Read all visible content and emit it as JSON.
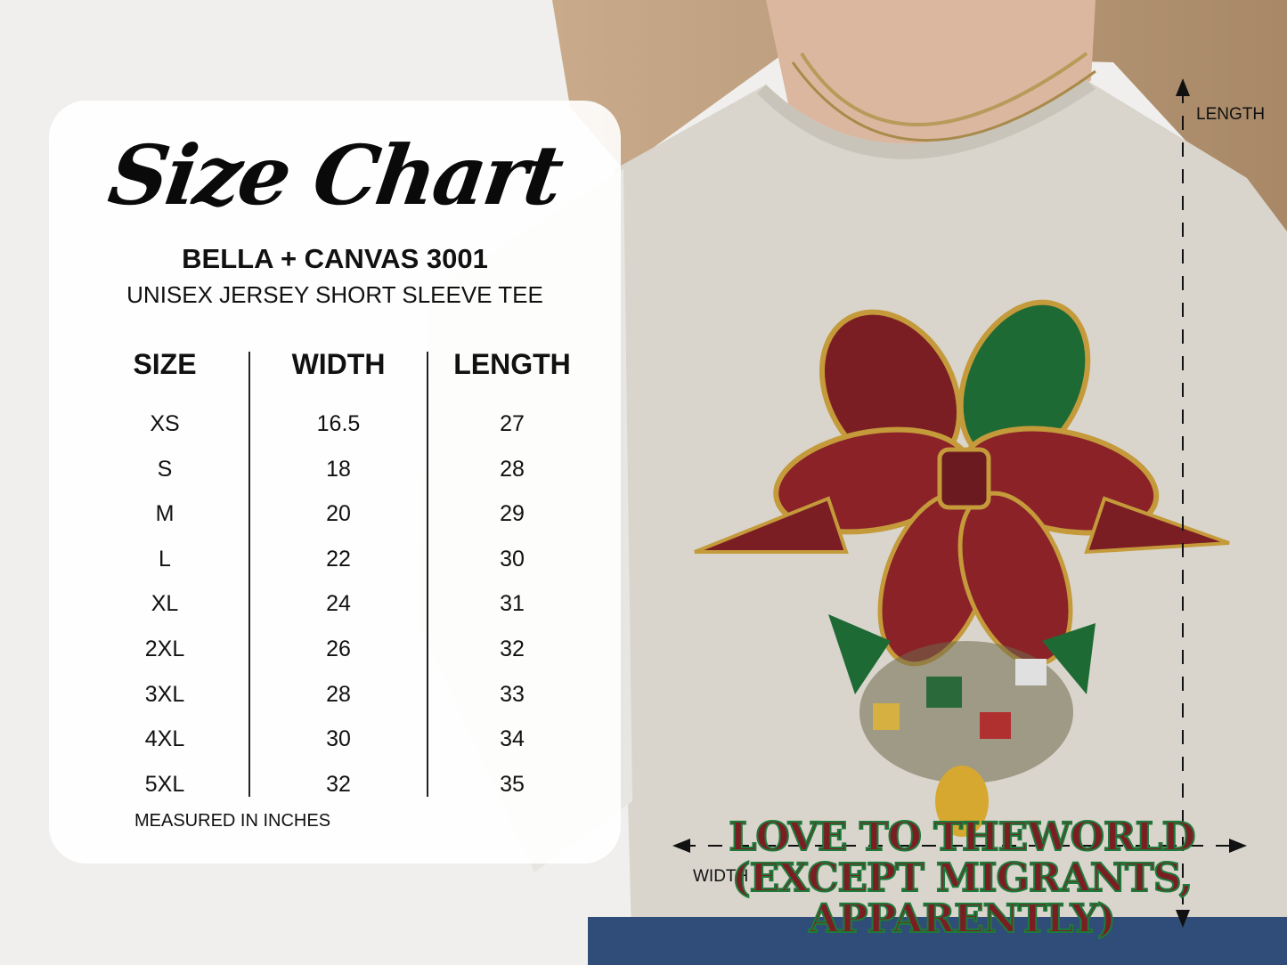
{
  "title": "Size Chart",
  "brand": "BELLA + CANVAS 3001",
  "model": "UNISEX JERSEY SHORT SLEEVE TEE",
  "table": {
    "headers": [
      "SIZE",
      "WIDTH",
      "LENGTH"
    ],
    "sizes": [
      "XS",
      "S",
      "M",
      "L",
      "XL",
      "2XL",
      "3XL",
      "4XL",
      "5XL"
    ],
    "widths": [
      "16.5",
      "18",
      "20",
      "22",
      "24",
      "26",
      "28",
      "30",
      "32"
    ],
    "lengths": [
      "27",
      "28",
      "29",
      "30",
      "31",
      "32",
      "33",
      "34",
      "35"
    ]
  },
  "note": "MEASURED IN INCHES",
  "diagram": {
    "length_label": "LENGTH",
    "width_label": "WIDTH"
  },
  "shirt_print": {
    "lines": [
      "LOVE TO THEWORLD",
      "(EXCEPT MIGRANTS,",
      "APPARENTLY)"
    ],
    "colors": {
      "letter": "#7b1e24",
      "holly": "#1e7a3a",
      "shirt": "#d9d5cc"
    }
  }
}
